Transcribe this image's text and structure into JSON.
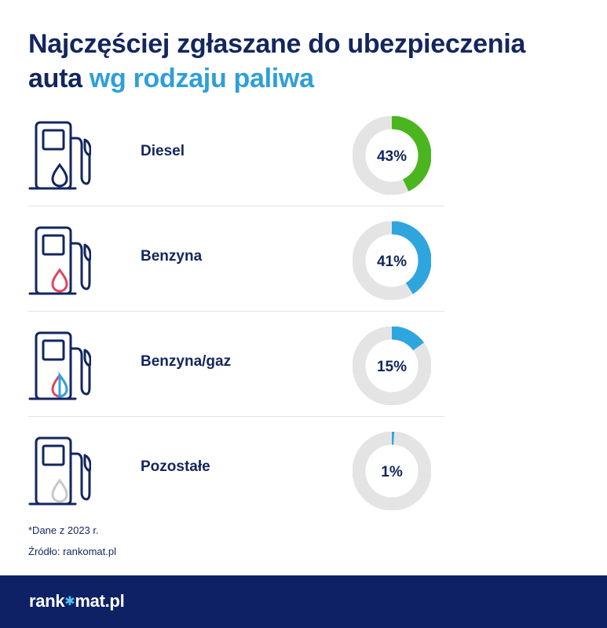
{
  "title": {
    "line1": "Najczęściej zgłaszane do ubezpieczenia",
    "line2_prefix": "auta ",
    "line2_accent": "wg rodzaju paliwa"
  },
  "colors": {
    "navy": "#13265e",
    "accent": "#2e9fd8",
    "track": "#e4e4e4",
    "footer_bg": "#0f2165"
  },
  "chart_data": {
    "type": "pie",
    "title": "Najczęściej zgłaszane do ubezpieczenia auta wg rodzaju paliwa",
    "unit": "%",
    "categories": [
      "Diesel",
      "Benzyna",
      "Benzyna/gaz",
      "Pozostałe"
    ],
    "values": [
      43,
      41,
      15,
      1
    ],
    "value_labels": [
      "43%",
      "41%",
      "15%",
      "1%"
    ],
    "colors": [
      "#4bb51f",
      "#2fa5de",
      "#2fa5de",
      "#2fa5de"
    ],
    "icons": [
      "fuel-pump-navy-drop-icon",
      "fuel-pump-red-drop-icon",
      "fuel-pump-red-blue-drop-icon",
      "fuel-pump-grey-drop-icon"
    ]
  },
  "notes": {
    "data_note": "*Dane z 2023 r.",
    "source": "Źródło: rankomat.pl"
  },
  "footer": {
    "logo_part1": "rank",
    "logo_star": "✱",
    "logo_part2": "mat.pl"
  }
}
